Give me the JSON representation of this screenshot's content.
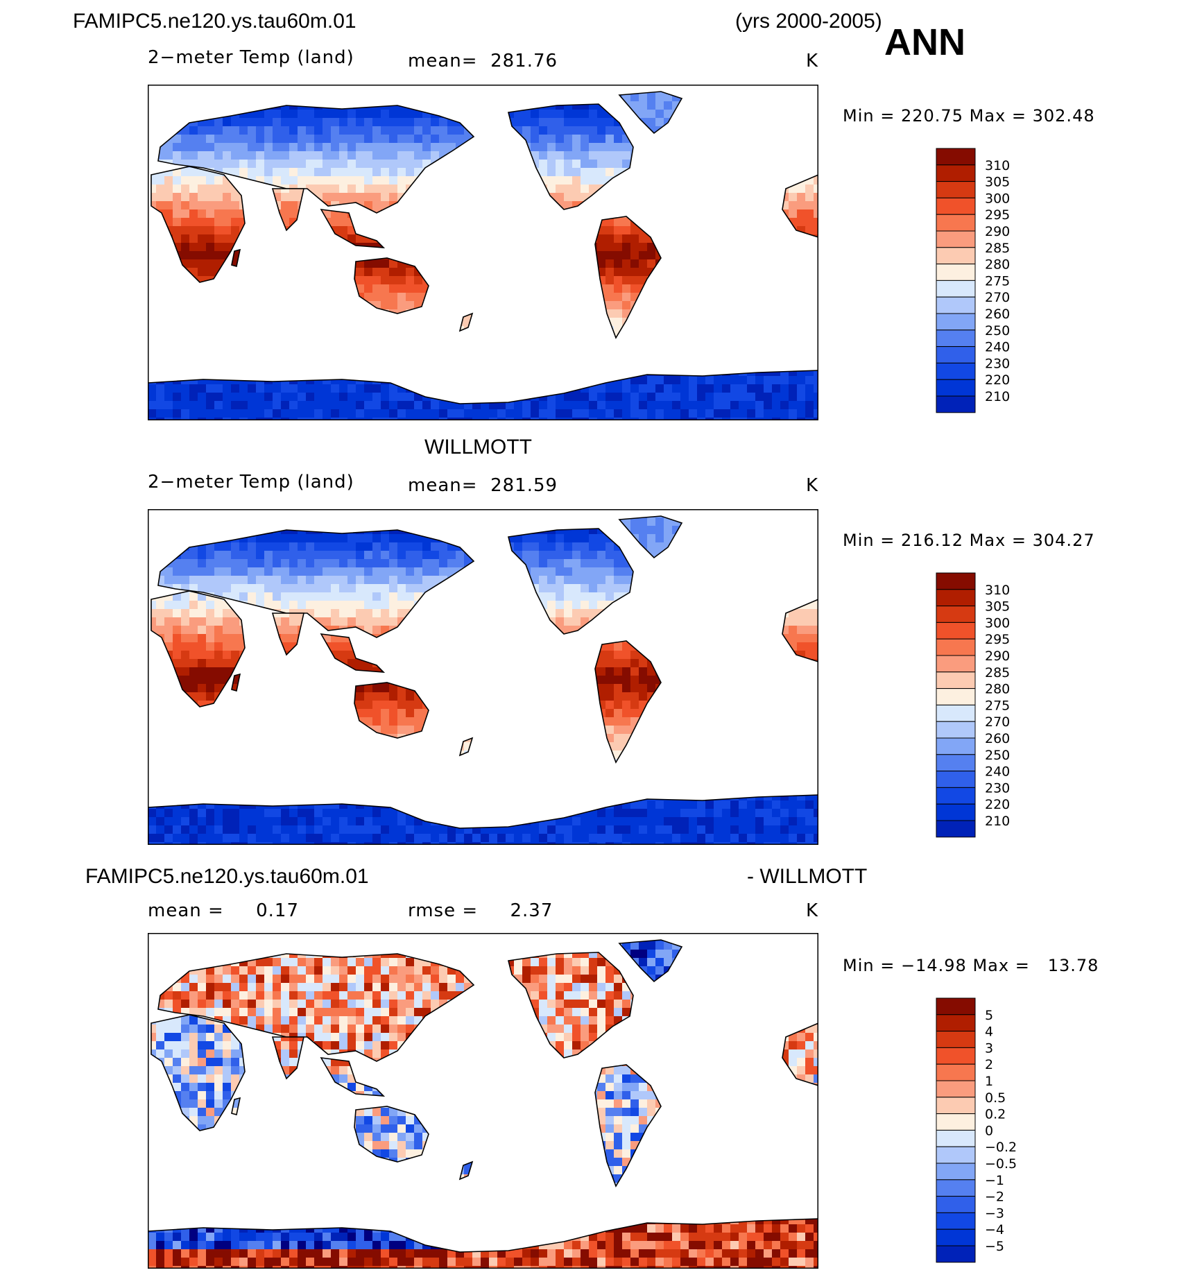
{
  "header": {
    "case_name": "FAMIPC5.ne120.ys.tau60m.01",
    "years": "(yrs 2000-2005)",
    "season": "ANN"
  },
  "colors": {
    "abs": [
      "#000080",
      "#0022b8",
      "#0036d6",
      "#1248e4",
      "#3060ea",
      "#5580f0",
      "#82a6f6",
      "#b0c8fa",
      "#d8e8fc",
      "#fdf0e0",
      "#fccbb2",
      "#fa9c7e",
      "#f7774f",
      "#f0522a",
      "#d63a12",
      "#b01e00",
      "#850c00"
    ],
    "diff": [
      "#000080",
      "#0022b8",
      "#0036d6",
      "#1248e4",
      "#3060ea",
      "#5580f0",
      "#82a6f6",
      "#b0c8fa",
      "#d8e8fc",
      "#fdf0e0",
      "#fccbb2",
      "#fa9c7e",
      "#f7774f",
      "#f0522a",
      "#d63a12",
      "#b01e00",
      "#850c00"
    ]
  },
  "chart_data": [
    {
      "type": "heatmap",
      "title": "FAMIPC5.ne120.ys.tau60m.01",
      "variable": "2−meter Temp (land)",
      "mean_label": "mean=",
      "mean_value": "281.76",
      "units": "K",
      "min_label": "Min",
      "min_value": "220.75",
      "max_label": "Max",
      "max_value": "302.48",
      "eq": "=",
      "colorbar_levels": [
        "310",
        "305",
        "300",
        "295",
        "290",
        "285",
        "280",
        "275",
        "270",
        "260",
        "250",
        "240",
        "230",
        "220",
        "210"
      ]
    },
    {
      "type": "heatmap",
      "title": "WILLMOTT",
      "variable": "2−meter Temp (land)",
      "mean_label": "mean=",
      "mean_value": "281.59",
      "units": "K",
      "min_label": "Min",
      "min_value": "216.12",
      "max_label": "Max",
      "max_value": "304.27",
      "eq": "=",
      "colorbar_levels": [
        "310",
        "305",
        "300",
        "295",
        "290",
        "285",
        "280",
        "275",
        "270",
        "260",
        "250",
        "240",
        "230",
        "220",
        "210"
      ]
    },
    {
      "type": "heatmap",
      "title": "FAMIPC5.ne120.ys.tau60m.01",
      "title_right": "- WILLMOTT",
      "mean_label": "mean =",
      "mean_value": "0.17",
      "rmse_label": "rmse =",
      "rmse_value": "2.37",
      "units": "K",
      "min_label": "Min",
      "min_value": "−14.98",
      "max_label": "Max",
      "max_value": "13.78",
      "eq": "=",
      "colorbar_levels": [
        "5",
        "4",
        "3",
        "2",
        "1",
        "0.5",
        "0.2",
        "0",
        "−0.2",
        "−0.5",
        "−1",
        "−2",
        "−3",
        "−4",
        "−5"
      ]
    }
  ]
}
